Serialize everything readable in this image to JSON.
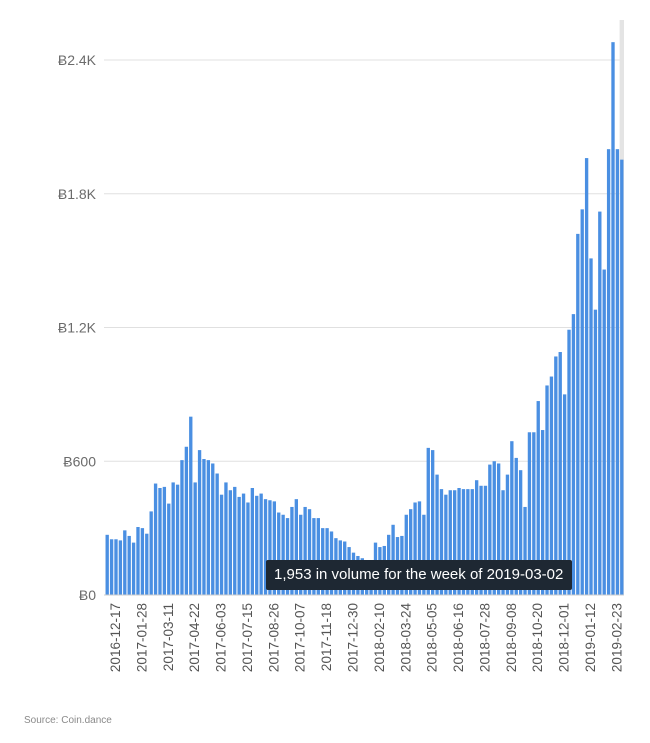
{
  "chart_data": {
    "type": "bar",
    "title": "",
    "xlabel": "",
    "ylabel": "",
    "ylim": [
      0,
      2400
    ],
    "y_ticks": [
      0,
      600,
      1200,
      1800,
      2400
    ],
    "y_tick_labels": [
      "Ƀ0",
      "Ƀ600",
      "Ƀ1.2K",
      "Ƀ1.8K",
      "Ƀ2.4K"
    ],
    "grid": true,
    "bar_color": "#4a8fe2",
    "x_tick_labels": [
      "2016-12-17",
      "2017-01-28",
      "2017-03-11",
      "2017-04-22",
      "2017-06-03",
      "2017-07-15",
      "2017-08-26",
      "2017-10-07",
      "2017-11-18",
      "2017-12-30",
      "2018-02-10",
      "2018-03-24",
      "2018-05-05",
      "2018-06-16",
      "2018-07-28",
      "2018-09-08",
      "2018-10-20",
      "2018-12-01",
      "2019-01-12",
      "2019-02-23"
    ],
    "tick_every": 6,
    "highlight_category": "2019-03-02",
    "categories": [
      "2016-12-03",
      "2016-12-10",
      "2016-12-17",
      "2016-12-24",
      "2016-12-31",
      "2017-01-07",
      "2017-01-14",
      "2017-01-21",
      "2017-01-28",
      "2017-02-04",
      "2017-02-11",
      "2017-02-18",
      "2017-02-25",
      "2017-03-04",
      "2017-03-11",
      "2017-03-18",
      "2017-03-25",
      "2017-04-01",
      "2017-04-08",
      "2017-04-15",
      "2017-04-22",
      "2017-04-29",
      "2017-05-06",
      "2017-05-13",
      "2017-05-20",
      "2017-05-27",
      "2017-06-03",
      "2017-06-10",
      "2017-06-17",
      "2017-06-24",
      "2017-07-01",
      "2017-07-08",
      "2017-07-15",
      "2017-07-22",
      "2017-07-29",
      "2017-08-05",
      "2017-08-12",
      "2017-08-19",
      "2017-08-26",
      "2017-09-02",
      "2017-09-09",
      "2017-09-16",
      "2017-09-23",
      "2017-09-30",
      "2017-10-07",
      "2017-10-14",
      "2017-10-21",
      "2017-10-28",
      "2017-11-04",
      "2017-11-11",
      "2017-11-18",
      "2017-11-25",
      "2017-12-02",
      "2017-12-09",
      "2017-12-16",
      "2017-12-23",
      "2017-12-30",
      "2018-01-06",
      "2018-01-13",
      "2018-01-20",
      "2018-01-27",
      "2018-02-03",
      "2018-02-10",
      "2018-02-17",
      "2018-02-24",
      "2018-03-03",
      "2018-03-10",
      "2018-03-17",
      "2018-03-24",
      "2018-03-31",
      "2018-04-07",
      "2018-04-14",
      "2018-04-21",
      "2018-04-28",
      "2018-05-05",
      "2018-05-12",
      "2018-05-19",
      "2018-05-26",
      "2018-06-02",
      "2018-06-09",
      "2018-06-16",
      "2018-06-23",
      "2018-06-30",
      "2018-07-07",
      "2018-07-14",
      "2018-07-21",
      "2018-07-28",
      "2018-08-04",
      "2018-08-11",
      "2018-08-18",
      "2018-08-25",
      "2018-09-01",
      "2018-09-08",
      "2018-09-15",
      "2018-09-22",
      "2018-09-29",
      "2018-10-06",
      "2018-10-13",
      "2018-10-20",
      "2018-10-27",
      "2018-11-03",
      "2018-11-10",
      "2018-11-17",
      "2018-11-24",
      "2018-12-01",
      "2018-12-08",
      "2018-12-15",
      "2018-12-22",
      "2018-12-29",
      "2019-01-05",
      "2019-01-12",
      "2019-01-19",
      "2019-01-26",
      "2019-02-02",
      "2019-02-09",
      "2019-02-16",
      "2019-02-23",
      "2019-03-02"
    ],
    "series": [
      {
        "values": [
          270,
          250,
          250,
          245,
          290,
          265,
          235,
          305,
          300,
          275,
          375,
          500,
          480,
          485,
          410,
          505,
          495,
          605,
          665,
          800,
          505,
          650,
          610,
          605,
          590,
          545,
          450,
          505,
          470,
          485,
          440,
          455,
          415,
          480,
          445,
          455,
          430,
          425,
          420,
          370,
          360,
          345,
          395,
          430,
          360,
          395,
          385,
          345,
          345,
          300,
          300,
          285,
          255,
          245,
          240,
          215,
          190,
          175,
          165,
          150,
          145,
          235,
          215,
          220,
          270,
          315,
          260,
          265,
          360,
          385,
          415,
          420,
          360,
          660,
          650,
          540,
          475,
          450,
          470,
          470,
          480,
          475,
          475,
          475,
          515,
          490,
          490,
          585,
          600,
          590,
          470,
          540,
          690,
          615,
          560,
          395,
          730,
          730,
          870,
          740,
          940,
          980,
          1070,
          1090,
          900,
          1190,
          1260,
          1620,
          1730,
          1960,
          1510,
          1280,
          1720,
          1460,
          2000,
          2480,
          2000,
          1953
        ]
      }
    ]
  },
  "tooltip": "1,953 in volume for the week of 2019-03-02",
  "source": "Source: Coin.dance"
}
